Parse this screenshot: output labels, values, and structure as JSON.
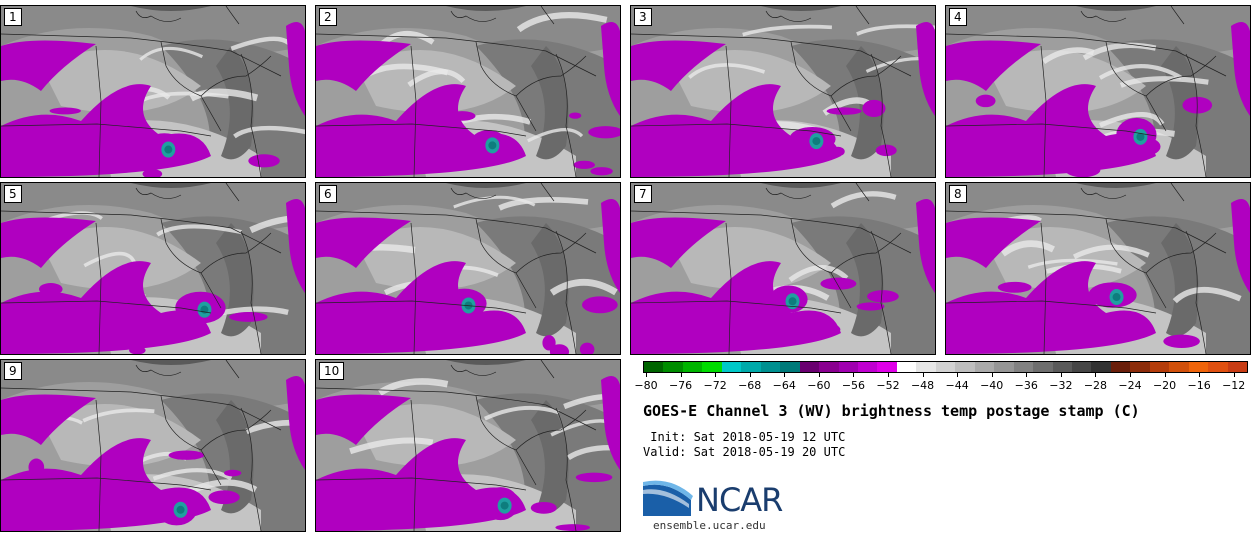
{
  "panels": [
    {
      "label": "1"
    },
    {
      "label": "2"
    },
    {
      "label": "3"
    },
    {
      "label": "4"
    },
    {
      "label": "5"
    },
    {
      "label": "6"
    },
    {
      "label": "7"
    },
    {
      "label": "8"
    },
    {
      "label": "9"
    },
    {
      "label": "10"
    }
  ],
  "colorbar": {
    "ticks": [
      "−80",
      "−76",
      "−72",
      "−68",
      "−64",
      "−60",
      "−56",
      "−52",
      "−48",
      "−44",
      "−40",
      "−36",
      "−32",
      "−28",
      "−24",
      "−20",
      "−16",
      "−12"
    ],
    "colors": [
      "#006400",
      "#008c00",
      "#00b400",
      "#00dc00",
      "#00c8c8",
      "#00aaaa",
      "#009090",
      "#007a7a",
      "#6a0070",
      "#8a0090",
      "#a000b0",
      "#c000d0",
      "#e000e8",
      "#ffffff",
      "#e6e6e6",
      "#d2d2d2",
      "#bebebe",
      "#aaaaaa",
      "#969696",
      "#828282",
      "#6e6e6e",
      "#5a5a5a",
      "#464646",
      "#323232",
      "#6a1e0a",
      "#8c2c0a",
      "#b43c0a",
      "#d2500a",
      "#f0640a",
      "#e05010",
      "#c83c14"
    ]
  },
  "title": "GOES-E Channel 3 (WV) brightness temp postage stamp (C)",
  "init": " Init: Sat 2018-05-19 12 UTC",
  "valid": "Valid: Sat 2018-05-19 20 UTC",
  "logo": {
    "text": "NCAR",
    "site": "ensemble.ucar.edu",
    "color": "#1a3d6e",
    "accent": "#2a8ad0"
  }
}
